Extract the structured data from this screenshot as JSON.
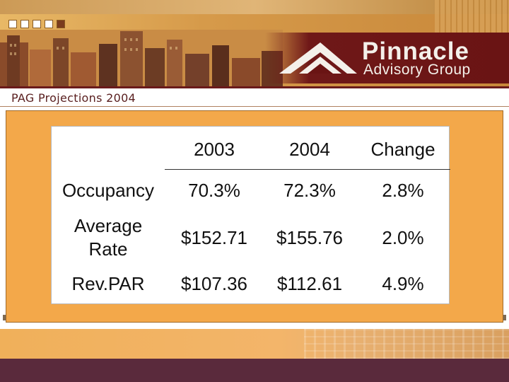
{
  "brand": {
    "name": "Pinnacle",
    "subtitle": "Advisory Group"
  },
  "slide": {
    "title": "PAG Projections 2004"
  },
  "table": {
    "columns": [
      "2003",
      "2004",
      "Change"
    ],
    "rows": [
      {
        "label": "Occupancy",
        "values": [
          "70.3%",
          "72.3%",
          "2.8%"
        ]
      },
      {
        "label_line1": "Average",
        "label_line2": "Rate",
        "values": [
          "$152.71",
          "$155.76",
          "2.0%"
        ]
      },
      {
        "label": "Rev.PAR",
        "values": [
          "$107.36",
          "$112.61",
          "4.9%"
        ]
      }
    ]
  },
  "colors": {
    "panel": "#f3a84a",
    "brand_maroon": "#6a1414",
    "footer": "#5a2a3c"
  }
}
